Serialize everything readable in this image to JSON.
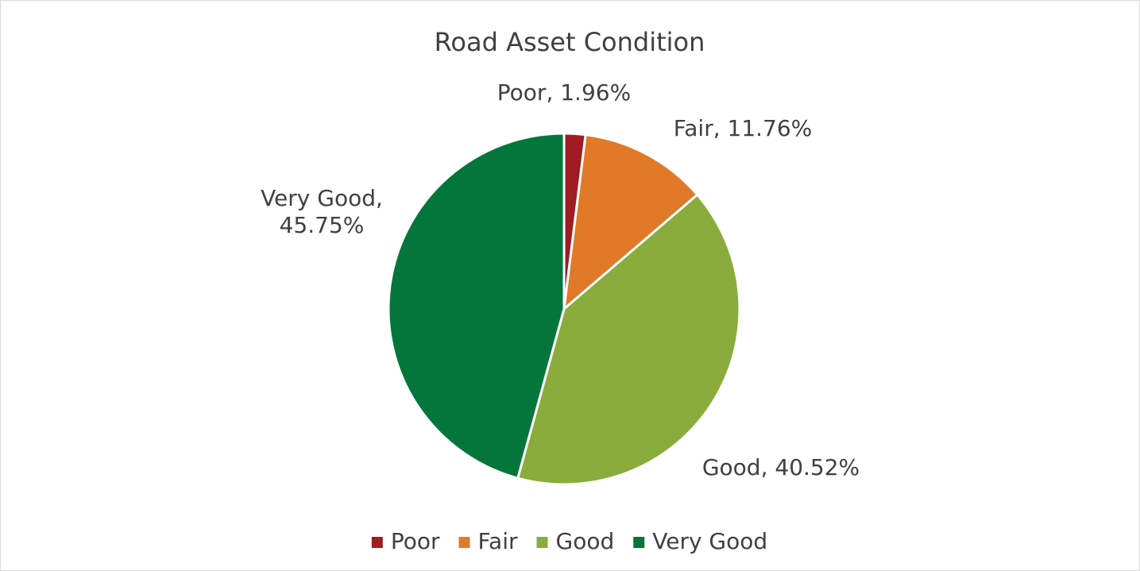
{
  "chart_data": {
    "type": "pie",
    "title": "Road Asset Condition",
    "categories": [
      "Poor",
      "Fair",
      "Good",
      "Very Good"
    ],
    "values": [
      1.96,
      11.76,
      40.52,
      45.75
    ],
    "value_labels": [
      [
        "Poor, 1.96%"
      ],
      [
        "Fair, 11.76%"
      ],
      [
        "Good, 40.52%"
      ],
      [
        "Very Good,",
        "45.75%"
      ]
    ],
    "colors": [
      "#9e1c22",
      "#e07a28",
      "#8aac3d",
      "#04763c"
    ],
    "legend": "bottom"
  }
}
